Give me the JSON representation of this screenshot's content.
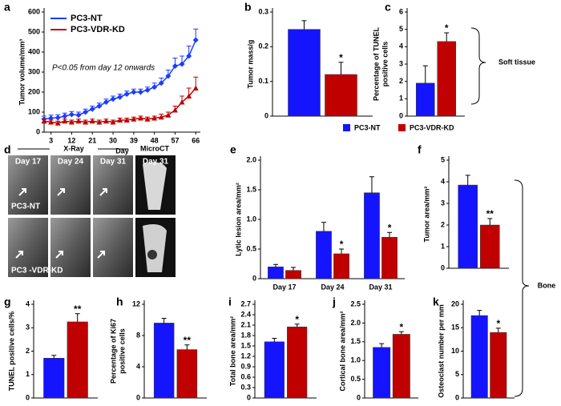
{
  "chart_data": [
    {
      "type": "line",
      "label": "a",
      "xlabel": "Day",
      "ylabel": [
        "Tumor volume/mm³"
      ],
      "annotation": "P<0.05 from day 12 onwards",
      "x": [
        0,
        3,
        6,
        9,
        12,
        15,
        18,
        21,
        24,
        27,
        30,
        33,
        36,
        39,
        42,
        45,
        48,
        51,
        54,
        57,
        60,
        63,
        66
      ],
      "xlim": [
        0,
        68
      ],
      "xticks": [
        3,
        12,
        21,
        30,
        39,
        48,
        57,
        66
      ],
      "ylim": [
        0,
        600
      ],
      "yticks": [
        0,
        100,
        200,
        300,
        400,
        500,
        600
      ],
      "series": [
        {
          "name": "PC3-NT",
          "color": "#1a3cff",
          "marker": "diamond",
          "values": [
            65,
            70,
            72,
            80,
            88,
            85,
            100,
            115,
            130,
            150,
            165,
            175,
            190,
            200,
            200,
            210,
            225,
            245,
            280,
            330,
            340,
            380,
            460
          ],
          "errors": [
            15,
            15,
            15,
            15,
            15,
            15,
            15,
            15,
            15,
            15,
            15,
            15,
            15,
            15,
            15,
            15,
            20,
            25,
            30,
            40,
            40,
            50,
            55
          ]
        },
        {
          "name": "PC3-VDR-KD",
          "color": "#c00000",
          "marker": "triangle",
          "values": [
            55,
            50,
            45,
            55,
            50,
            55,
            50,
            55,
            50,
            55,
            50,
            60,
            60,
            65,
            70,
            65,
            70,
            75,
            85,
            110,
            150,
            180,
            220
          ],
          "errors": [
            10,
            10,
            10,
            10,
            10,
            10,
            10,
            10,
            10,
            10,
            10,
            10,
            10,
            10,
            10,
            10,
            10,
            15,
            15,
            20,
            30,
            40,
            55
          ]
        }
      ]
    },
    {
      "type": "bar",
      "label": "b",
      "ylabel": [
        "Tumor mass/g"
      ],
      "ylim": [
        0,
        0.3
      ],
      "yticks": [
        0,
        0.1,
        0.2,
        0.3
      ],
      "series": [
        {
          "color": "#1414ff",
          "values": [
            0.25
          ],
          "errors": [
            0.025
          ]
        },
        {
          "color": "#c00000",
          "values": [
            0.12
          ],
          "errors": [
            0.035
          ],
          "significance": [
            "*"
          ]
        }
      ]
    },
    {
      "type": "bar",
      "label": "c",
      "ylabel": [
        "Percentage of TUNEL",
        "positive cells"
      ],
      "ylim": [
        0,
        6
      ],
      "yticks": [
        0,
        1,
        2,
        3,
        4,
        5,
        6
      ],
      "series": [
        {
          "color": "#1414ff",
          "values": [
            1.9
          ],
          "errors": [
            1.0
          ]
        },
        {
          "color": "#c00000",
          "values": [
            4.3
          ],
          "errors": [
            0.5
          ],
          "significance": [
            "*"
          ]
        }
      ]
    },
    {
      "type": "bar",
      "label": "e",
      "ylabel": [
        "Lytic lesion area/mm²"
      ],
      "categories": [
        "Day 17",
        "Day 24",
        "Day 31"
      ],
      "ylim": [
        0,
        2
      ],
      "yticks": [
        0,
        0.5,
        {
          "value": 1,
          "label": "1.0"
        },
        1.5,
        {
          "value": 2,
          "label": "2.0"
        }
      ],
      "series": [
        {
          "color": "#1414ff",
          "values": [
            0.2,
            0.8,
            1.45
          ],
          "errors": [
            0.04,
            0.15,
            0.27
          ]
        },
        {
          "color": "#c00000",
          "values": [
            0.14,
            0.42,
            0.7
          ],
          "errors": [
            0.05,
            0.08,
            0.08
          ],
          "significance": [
            null,
            "*",
            "*"
          ]
        }
      ]
    },
    {
      "type": "bar",
      "label": "f",
      "ylabel": [
        "Tumor area/mm²"
      ],
      "ylim": [
        0,
        5
      ],
      "yticks": [
        0,
        1,
        2,
        3,
        4,
        5
      ],
      "series": [
        {
          "color": "#1414ff",
          "values": [
            3.85
          ],
          "errors": [
            0.45
          ]
        },
        {
          "color": "#c00000",
          "values": [
            2.0
          ],
          "errors": [
            0.3
          ],
          "significance": [
            "**"
          ]
        }
      ]
    },
    {
      "type": "bar",
      "label": "g",
      "ylabel": [
        "TUNEL positive cells/%"
      ],
      "ylim": [
        0,
        4
      ],
      "yticks": [
        0,
        1,
        2,
        3,
        4
      ],
      "series": [
        {
          "color": "#1414ff",
          "values": [
            1.7
          ],
          "errors": [
            0.12
          ]
        },
        {
          "color": "#c00000",
          "values": [
            3.25
          ],
          "errors": [
            0.35
          ],
          "significance": [
            "**"
          ]
        }
      ]
    },
    {
      "type": "bar",
      "label": "h",
      "ylabel": [
        "Percentage of Ki67",
        "positive cells"
      ],
      "ylim": [
        0,
        12
      ],
      "yticks": [
        0,
        4,
        8,
        12
      ],
      "series": [
        {
          "color": "#1414ff",
          "values": [
            9.6
          ],
          "errors": [
            0.6
          ]
        },
        {
          "color": "#c00000",
          "values": [
            6.2
          ],
          "errors": [
            0.6
          ],
          "significance": [
            "**"
          ]
        }
      ]
    },
    {
      "type": "bar",
      "label": "i",
      "ylabel": [
        "Total bone area/mm²"
      ],
      "ylim": [
        0,
        2.7
      ],
      "yticks": [
        0,
        0.3,
        0.6,
        0.9,
        1.2,
        1.5,
        1.8,
        2.1,
        2.4,
        2.7
      ],
      "series": [
        {
          "color": "#1414ff",
          "values": [
            1.62
          ],
          "errors": [
            0.1
          ]
        },
        {
          "color": "#c00000",
          "values": [
            2.05
          ],
          "errors": [
            0.08
          ],
          "significance": [
            "*"
          ]
        }
      ]
    },
    {
      "type": "bar",
      "label": "j",
      "ylabel": [
        "Cortical bone area/mm²"
      ],
      "ylim": [
        0,
        2.5
      ],
      "yticks": [
        0,
        0.5,
        {
          "value": 1,
          "label": "1.0"
        },
        1.5,
        {
          "value": 2,
          "label": "2.0"
        },
        2.5
      ],
      "series": [
        {
          "color": "#1414ff",
          "values": [
            1.35
          ],
          "errors": [
            0.1
          ]
        },
        {
          "color": "#c00000",
          "values": [
            1.7
          ],
          "errors": [
            0.07
          ],
          "significance": [
            "*"
          ]
        }
      ]
    },
    {
      "type": "bar",
      "label": "k",
      "ylabel": [
        "Osteoclast number per mm"
      ],
      "ylim": [
        0,
        20
      ],
      "yticks": [
        0,
        5,
        10,
        15,
        20
      ],
      "series": [
        {
          "color": "#1414ff",
          "values": [
            17.6
          ],
          "errors": [
            1.1
          ]
        },
        {
          "color": "#c00000",
          "values": [
            14
          ],
          "errors": [
            0.9
          ],
          "significance": [
            "*"
          ]
        }
      ]
    }
  ],
  "legend": [
    {
      "name": "PC3-NT",
      "color": "#1414ff"
    },
    {
      "name": "PC3-VDR-KD",
      "color": "#c00000"
    }
  ],
  "brackets": [
    "Soft tissue",
    "Bone"
  ],
  "image_panel": {
    "label": "d",
    "headers": [
      "X-Ray",
      "MicroCT"
    ],
    "days": [
      "Day 17",
      "Day 24",
      "Day 31",
      "Day 31"
    ],
    "rows": [
      "PC3-NT",
      "PC3 -VDR-KD"
    ]
  }
}
